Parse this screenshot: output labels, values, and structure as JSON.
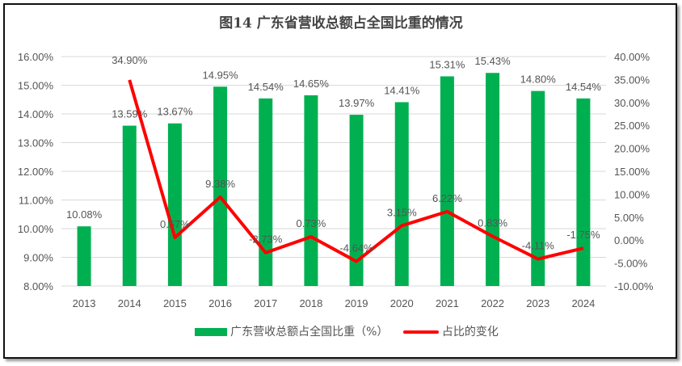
{
  "chart_data": {
    "type": "bar+line",
    "title": "图14  广东省营收总额占全国比重的情况",
    "categories": [
      "2013",
      "2014",
      "2015",
      "2016",
      "2017",
      "2018",
      "2019",
      "2020",
      "2021",
      "2022",
      "2023",
      "2024"
    ],
    "series": [
      {
        "name": "广东营收总额占全国比重（%）",
        "type": "bar",
        "axis": "left",
        "color": "#00b050",
        "values": [
          10.08,
          13.59,
          13.67,
          14.95,
          14.54,
          14.65,
          13.97,
          14.41,
          15.31,
          15.43,
          14.8,
          14.54
        ],
        "labels": [
          "10.08%",
          "13.59%",
          "13.67%",
          "14.95%",
          "14.54%",
          "14.65%",
          "13.97%",
          "14.41%",
          "15.31%",
          "15.43%",
          "14.80%",
          "14.54%"
        ]
      },
      {
        "name": "占比的变化",
        "type": "line",
        "axis": "right",
        "color": "#ff0000",
        "values": [
          null,
          34.9,
          0.57,
          9.38,
          -2.73,
          0.73,
          -4.64,
          3.15,
          6.22,
          0.83,
          -4.11,
          -1.75
        ],
        "labels": [
          "",
          "34.90%",
          "0.57%",
          "9.38%",
          "-2.73%",
          "0.73%",
          "-4.64%",
          "3.15%",
          "6.22%",
          "0.83%",
          "-4.11%",
          "-1.75%"
        ]
      }
    ],
    "ylim_left": [
      8,
      16
    ],
    "ylim_right": [
      -10,
      40
    ],
    "yticks_left": [
      "8.00%",
      "9.00%",
      "10.00%",
      "11.00%",
      "12.00%",
      "13.00%",
      "14.00%",
      "15.00%",
      "16.00%"
    ],
    "yticks_right": [
      "-10.00%",
      "-5.00%",
      "0.00%",
      "5.00%",
      "10.00%",
      "15.00%",
      "20.00%",
      "25.00%",
      "30.00%",
      "35.00%",
      "40.00%"
    ],
    "grid": true,
    "legend": "bottom"
  }
}
